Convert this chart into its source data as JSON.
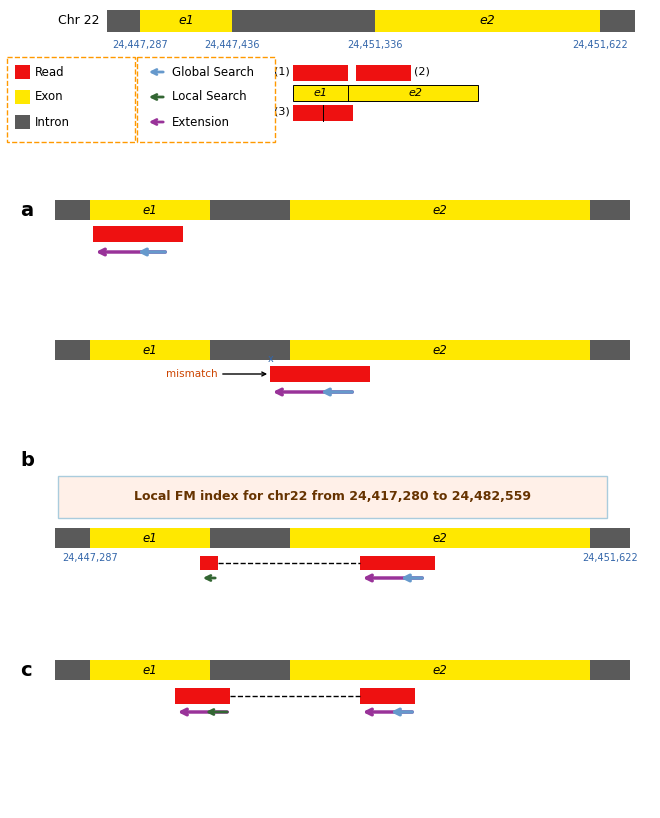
{
  "colors": {
    "yellow": "#FFE800",
    "gray": "#5A5A5A",
    "red": "#EE1111",
    "purple": "#993399",
    "blue_arrow": "#6699CC",
    "green_arrow": "#336633",
    "orange_dashed": "#FF9900",
    "box_bg": "#FFF0E8",
    "box_border": "#AACCDD",
    "text_dark": "#333333",
    "coord_color": "#3366AA",
    "mismatch_color": "#CC4400"
  },
  "fm_box_text": "Local FM index for chr22 from 24,417,280 to 24,482,559",
  "coords_top": [
    "24,447,287",
    "24,447,436",
    "24,451,336",
    "24,451,622"
  ]
}
